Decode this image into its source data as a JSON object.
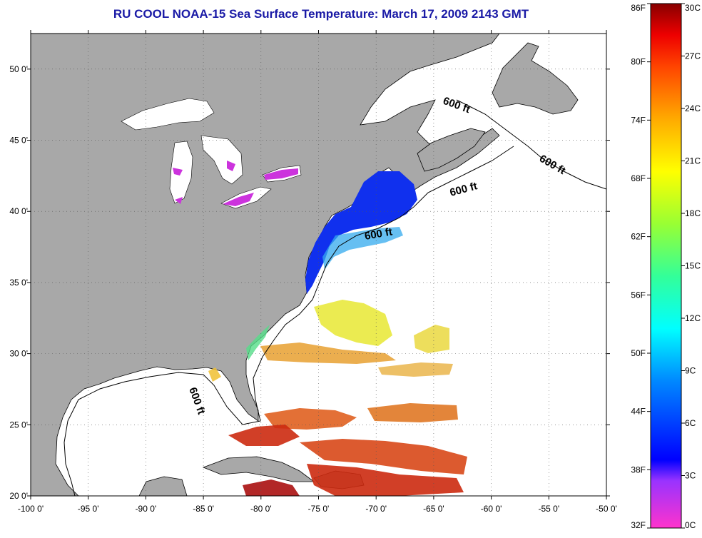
{
  "title": "RU COOL  NOAA-15  Sea Surface Temperature:  March 17, 2009 2143 GMT",
  "map": {
    "lon_range": [
      -100,
      -50
    ],
    "lat_range": [
      20,
      52.5
    ],
    "lon_ticks": [
      "-100 0'",
      "-95 0'",
      "-90 0'",
      "-85 0'",
      "-80 0'",
      "-75 0'",
      "-70 0'",
      "-65 0'",
      "-60 0'",
      "-55 0'",
      "-50 0'"
    ],
    "lat_ticks": [
      "20 0'",
      "25 0'",
      "30 0'",
      "35 0'",
      "40 0'",
      "45 0'",
      "50 0'"
    ],
    "contour_label": "600 ft",
    "land_color": "#a8a8a8",
    "cloud_color": "#ffffff"
  },
  "colorbar": {
    "fahrenheit_labels": [
      "86F",
      "80F",
      "74F",
      "68F",
      "62F",
      "56F",
      "50F",
      "44F",
      "38F",
      "32F"
    ],
    "celsius_labels": [
      "30C",
      "27C",
      "24C",
      "21C",
      "18C",
      "15C",
      "12C",
      "9C",
      "6C",
      "3C",
      "0C"
    ],
    "range_c": [
      0,
      30
    ]
  }
}
